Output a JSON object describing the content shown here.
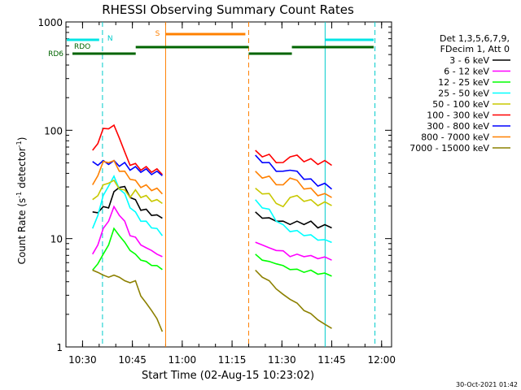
{
  "chart_data": {
    "type": "line",
    "title": "RHESSI Observing Summary Count Rates",
    "xlabel": "Start Time (02-Aug-15 10:23:02)",
    "ylabel_main": "Count Rate (s",
    "ylabel_sup1": "-1",
    "ylabel_mid": " detector",
    "ylabel_sup2": "-1",
    "ylabel_end": ")",
    "y_scale": "log",
    "ylim": [
      1,
      1000
    ],
    "xlim_minutes": [
      10.42,
      12.05
    ],
    "x_ticks": [
      "10:30",
      "10:45",
      "11:00",
      "11:15",
      "11:30",
      "11:45",
      "12:00"
    ],
    "y_ticks": [
      "1",
      "10",
      "100",
      "1000"
    ],
    "timestamp": "30-Oct-2021 01:42",
    "legend": {
      "header1": "Det 1,3,5,6,7,9,",
      "header2": "FDecim 1, Att 0",
      "placement": "right"
    },
    "flags": [
      {
        "label": "RDO",
        "color": "#006400"
      },
      {
        "label": "RD6",
        "color": "#006400"
      },
      {
        "label": "N",
        "color": "#00cccc"
      },
      {
        "label": "S",
        "color": "#ff8000"
      }
    ],
    "vlines": [
      {
        "time": "10:36",
        "style": "dashed",
        "color": "#00cccc"
      },
      {
        "time": "10:55",
        "style": "solid",
        "color": "#ff8000"
      },
      {
        "time": "11:20",
        "style": "dashed",
        "color": "#ff8000"
      },
      {
        "time": "11:43",
        "style": "solid",
        "color": "#00cccc"
      },
      {
        "time": "11:58",
        "style": "dashed",
        "color": "#00cccc"
      }
    ],
    "series": [
      {
        "name": "3 - 6 keV",
        "color": "#000000",
        "seg1": [
          17,
          18,
          19,
          20,
          26,
          31,
          29,
          25,
          22,
          19,
          18,
          17,
          16,
          16
        ],
        "seg2": [
          17,
          16,
          15,
          15,
          14,
          14,
          14,
          14,
          14,
          13,
          13,
          13
        ]
      },
      {
        "name": "6 - 12 keV",
        "color": "#ff00ff",
        "seg1": [
          7,
          9,
          12,
          15,
          19,
          17,
          14,
          11,
          10,
          9,
          8,
          8,
          7,
          7
        ],
        "seg2": [
          9,
          9,
          8,
          8,
          7.5,
          7,
          7,
          7,
          6.8,
          6.7,
          6.6,
          6.5
        ]
      },
      {
        "name": "12 - 25 keV",
        "color": "#00ff00",
        "seg1": [
          5,
          6,
          7,
          9,
          12,
          11,
          9,
          8,
          7,
          6.5,
          6,
          5.8,
          5.5,
          5.3
        ],
        "seg2": [
          7,
          6.5,
          6,
          6,
          5.5,
          5.3,
          5.1,
          5,
          5,
          4.8,
          4.7,
          4.6
        ]
      },
      {
        "name": "25 - 50 keV",
        "color": "#00ffff",
        "seg1": [
          12,
          17,
          24,
          32,
          36,
          30,
          25,
          20,
          17,
          15,
          14,
          13,
          12,
          11
        ],
        "seg2": [
          22,
          20,
          18,
          15,
          13,
          12,
          11.5,
          11,
          10.5,
          10,
          9.5,
          9.5
        ]
      },
      {
        "name": "50 - 100 keV",
        "color": "#c8c800",
        "seg1": [
          22,
          26,
          30,
          34,
          33,
          30,
          27,
          25,
          27,
          25,
          24,
          23,
          22,
          22
        ],
        "seg2": [
          28,
          27,
          25,
          22,
          19,
          25,
          24,
          23,
          22,
          21,
          21,
          21
        ]
      },
      {
        "name": "100 - 300 keV",
        "color": "#ff0000",
        "seg1": [
          62,
          80,
          98,
          110,
          105,
          90,
          60,
          50,
          47,
          45,
          44,
          43,
          42,
          41
        ],
        "seg2": [
          62,
          60,
          57,
          53,
          48,
          60,
          56,
          54,
          52,
          51,
          50,
          50
        ]
      },
      {
        "name": "300 - 800 keV",
        "color": "#0000ff",
        "seg1": [
          49,
          50,
          50,
          51,
          50,
          49,
          48,
          45,
          44,
          43,
          42,
          41,
          40,
          40
        ],
        "seg2": [
          56,
          53,
          48,
          44,
          40,
          45,
          40,
          37,
          34,
          32,
          31,
          30
        ]
      },
      {
        "name": "800 - 7000 keV",
        "color": "#ff8000",
        "seg1": [
          30,
          40,
          49,
          53,
          50,
          44,
          40,
          37,
          33,
          31,
          30,
          29,
          28,
          27
        ],
        "seg2": [
          40,
          38,
          36,
          33,
          30,
          38,
          33,
          30,
          28,
          26,
          25,
          25
        ]
      },
      {
        "name": "7000 - 15000 keV",
        "color": "#8c8000",
        "seg1": [
          5,
          5,
          4.5,
          4.5,
          4.5,
          4.5,
          4,
          4,
          4,
          3,
          2.5,
          2.2,
          1.8,
          1.4
        ],
        "seg2": [
          5,
          4.5,
          4,
          3.5,
          3,
          2.8,
          2.5,
          2.2,
          2,
          1.8,
          1.6,
          1.5
        ]
      }
    ]
  }
}
